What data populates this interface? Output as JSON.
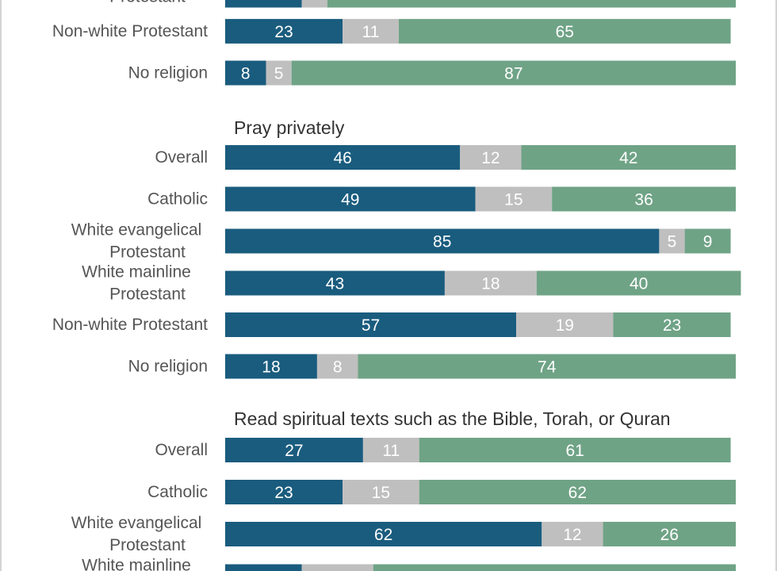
{
  "chart_data": {
    "type": "bar",
    "orientation": "horizontal",
    "stacked": true,
    "xlim": [
      0,
      100
    ],
    "colors": [
      "#1a5c7e",
      "#bfbfbf",
      "#6fa386"
    ],
    "groups": [
      {
        "title": "",
        "rows": [
          {
            "label": "Protestant",
            "values": [
              15,
              5,
              80
            ],
            "show_values": false
          },
          {
            "label": "Non-white Protestant",
            "values": [
              23,
              11,
              65
            ]
          },
          {
            "label": "No religion",
            "values": [
              8,
              5,
              87
            ]
          }
        ]
      },
      {
        "title": "Pray privately",
        "rows": [
          {
            "label": "Overall",
            "values": [
              46,
              12,
              42
            ]
          },
          {
            "label": "Catholic",
            "values": [
              49,
              15,
              36
            ]
          },
          {
            "label": "White evangelical Protestant",
            "values": [
              85,
              5,
              9
            ]
          },
          {
            "label": "White mainline Protestant",
            "values": [
              43,
              18,
              40
            ]
          },
          {
            "label": "Non-white Protestant",
            "values": [
              57,
              19,
              23
            ]
          },
          {
            "label": "No religion",
            "values": [
              18,
              8,
              74
            ]
          }
        ]
      },
      {
        "title": "Read spiritual texts such as the Bible, Torah, or Quran",
        "rows": [
          {
            "label": "Overall",
            "values": [
              27,
              11,
              61
            ]
          },
          {
            "label": "Catholic",
            "values": [
              23,
              15,
              62
            ]
          },
          {
            "label": "White evangelical Protestant",
            "values": [
              62,
              12,
              26
            ]
          },
          {
            "label": "White mainline Protestant",
            "values": [
              15,
              14,
              71
            ]
          }
        ]
      }
    ]
  }
}
